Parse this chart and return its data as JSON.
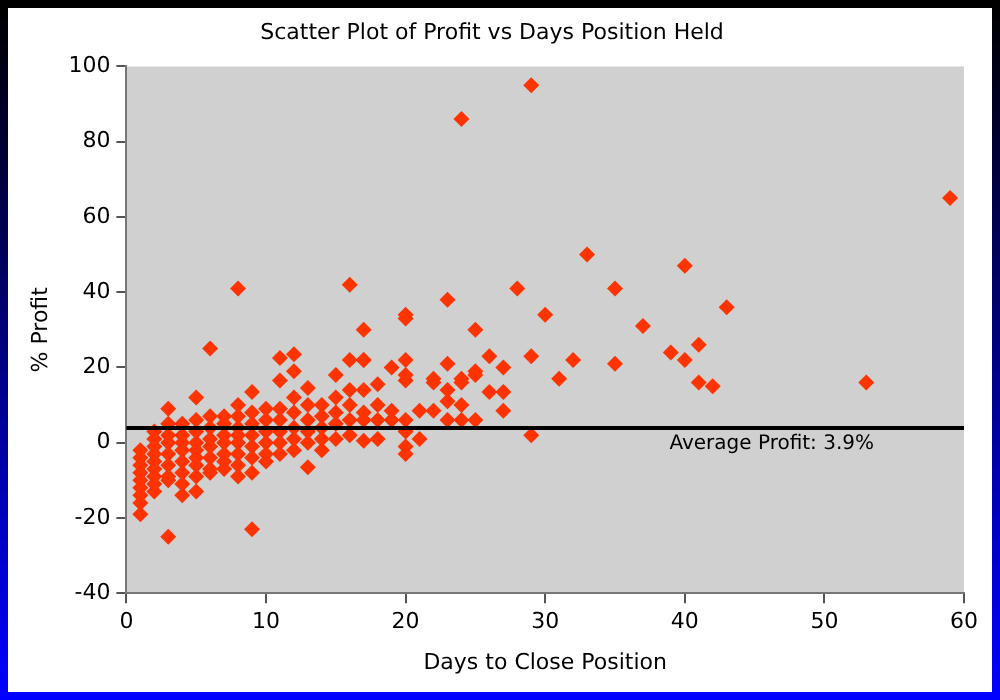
{
  "chart_data": {
    "type": "scatter",
    "title": "Scatter Plot of Profit vs Days Position Held",
    "xlabel": "Days to Close Position",
    "ylabel": "% Profit",
    "xlim": [
      0,
      60
    ],
    "xticks": [
      0,
      10,
      20,
      30,
      40,
      50,
      60
    ],
    "ylim": [
      -40,
      100
    ],
    "yticks": [
      -40,
      -20,
      0,
      20,
      40,
      60,
      80,
      100
    ],
    "grid": false,
    "legend": false,
    "marker": "diamond",
    "ref_lines": [
      {
        "axis": "y",
        "value": 3.9,
        "label": "Average Profit: 3.9%",
        "color": "#000000"
      }
    ],
    "series": [
      {
        "color": "#ff3300",
        "x": [
          1,
          1,
          1,
          1,
          1,
          1,
          1,
          1,
          1,
          2,
          2,
          2,
          2,
          2,
          2,
          2,
          2,
          2,
          3,
          3,
          3,
          3,
          3,
          3,
          3,
          3,
          3,
          4,
          4,
          4,
          4,
          4,
          4,
          4,
          4,
          5,
          5,
          5,
          5,
          5,
          5,
          5,
          5,
          5,
          6,
          6,
          6,
          6,
          6,
          6,
          6,
          6,
          7,
          7,
          7,
          7,
          7,
          7,
          7,
          8,
          8,
          8,
          8,
          8,
          8,
          8,
          8,
          8,
          9,
          9,
          9,
          9,
          9,
          9,
          9,
          9,
          10,
          10,
          10,
          10,
          10,
          10,
          11,
          11,
          11,
          11,
          11,
          11,
          11,
          12,
          12,
          12,
          12,
          12,
          12,
          12,
          13,
          13,
          13,
          13,
          13,
          13,
          14,
          14,
          14,
          14,
          14,
          15,
          15,
          15,
          15,
          15,
          16,
          16,
          16,
          16,
          16,
          16,
          17,
          17,
          17,
          17,
          17,
          17,
          17,
          18,
          18,
          18,
          18,
          19,
          19,
          19,
          20,
          20,
          20,
          20,
          20,
          20,
          20,
          20,
          20,
          21,
          21,
          22,
          22,
          22,
          23,
          23,
          23,
          23,
          23,
          24,
          24,
          24,
          24,
          24,
          25,
          25,
          25,
          25,
          26,
          26,
          27,
          27,
          27,
          28,
          29,
          29,
          29,
          30,
          31,
          32,
          33,
          35,
          35,
          37,
          39,
          40,
          40,
          41,
          41,
          42,
          43,
          53,
          59
        ],
        "values": [
          -2,
          -4,
          -6,
          -8,
          -10,
          -12,
          -14,
          -16,
          -19,
          3,
          1,
          -1,
          -3,
          -5,
          -7,
          -9,
          -11,
          -13,
          9,
          5,
          2,
          0,
          -3,
          -6,
          -9,
          -10,
          -25,
          5,
          2,
          0,
          -2,
          -5,
          -8,
          -11,
          -14,
          12,
          6,
          3,
          0,
          -2,
          -4,
          -6,
          -9,
          -13,
          7,
          4,
          1,
          -1,
          -4,
          -7,
          -8,
          25,
          7,
          5,
          2,
          0,
          -3,
          -5,
          -7,
          10,
          7,
          4,
          2,
          0,
          -3,
          -6,
          -9,
          41,
          13.5,
          8,
          5,
          2,
          -1,
          -4,
          -8,
          -23,
          9,
          6,
          3,
          0,
          -3,
          -5,
          22.5,
          16.5,
          9,
          6,
          3,
          0,
          -3,
          23.5,
          19,
          12,
          8,
          4,
          1,
          -2,
          14.5,
          10,
          6,
          3,
          0,
          -6.5,
          10,
          7,
          4,
          1,
          -2,
          18,
          12,
          8,
          5,
          1,
          22,
          14,
          10,
          6,
          2,
          42,
          30,
          22,
          14,
          8,
          6,
          0.5,
          22,
          15.5,
          10,
          6,
          1,
          20,
          8.5,
          6,
          34,
          33,
          22,
          18,
          16.5,
          3,
          -1,
          -3,
          6,
          8.5,
          1,
          17,
          16,
          8.5,
          38,
          21,
          14,
          11,
          6,
          86,
          17,
          16,
          10,
          6,
          30,
          19,
          18,
          6,
          23,
          13.5,
          20,
          13.5,
          8.5,
          41,
          95,
          23,
          2,
          34,
          17,
          22,
          50,
          41,
          21,
          31,
          24,
          22,
          47,
          26,
          16,
          15,
          36,
          16,
          65
        ]
      }
    ]
  }
}
